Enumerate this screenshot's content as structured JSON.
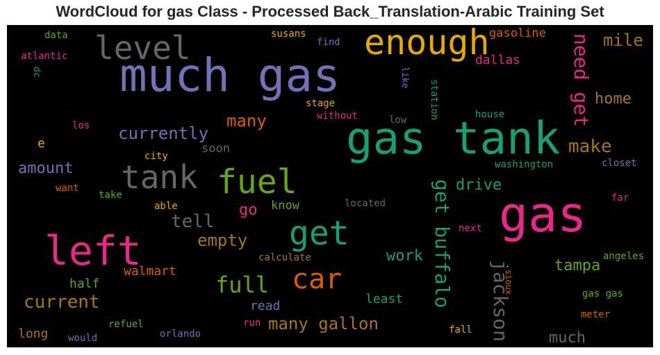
{
  "title": "WordCloud for gas Class - Processed Back_Translation-Arabic Training Set",
  "colors": {
    "purple": "#7570b3",
    "green": "#1b9e77",
    "orange": "#d95f02",
    "pink": "#e7298a",
    "lime": "#66a61e",
    "gold": "#e6ab02",
    "brown": "#a6761d",
    "gray": "#666666"
  },
  "words": {
    "much_gas": "much gas",
    "gas_tank": "gas tank",
    "gas": "gas",
    "left": "left",
    "enough": "enough",
    "level": "level",
    "fuel": "fuel",
    "get": "get",
    "tank": "tank",
    "car": "car",
    "get_buffalo": "get buffalo",
    "need_get": "need get",
    "full": "full",
    "jackson": "jackson",
    "current": "current",
    "many_gallon": "many gallon",
    "currently": "currently",
    "make": "make",
    "home": "home",
    "tell": "tell",
    "empty": "empty",
    "amount": "amount",
    "mile": "mile",
    "many": "many",
    "tampa": "tampa",
    "much": "much",
    "work": "work",
    "drive": "drive",
    "dallas": "dallas",
    "gasoline": "gasoline",
    "walmart": "walmart",
    "go": "go",
    "half": "half",
    "know": "know",
    "least": "least",
    "read": "read",
    "long": "long",
    "soon": "soon",
    "station": "station",
    "susans": "susans",
    "find": "find",
    "data": "data",
    "atlantic": "atlantic",
    "dc": "dc",
    "like": "like",
    "stage": "stage",
    "without": "without",
    "low": "low",
    "house": "house",
    "los": "los",
    "e": "e",
    "city": "city",
    "washington": "washington",
    "closet": "closet",
    "want": "want",
    "take": "take",
    "able": "able",
    "located": "located",
    "far": "far",
    "next": "next",
    "calculate": "calculate",
    "angeles": "angeles",
    "sioux": "sioux",
    "gas_gas": "gas gas",
    "refuel": "refuel",
    "orlando": "orlando",
    "would": "would",
    "run": "run",
    "fall": "fall",
    "meter": "meter"
  }
}
